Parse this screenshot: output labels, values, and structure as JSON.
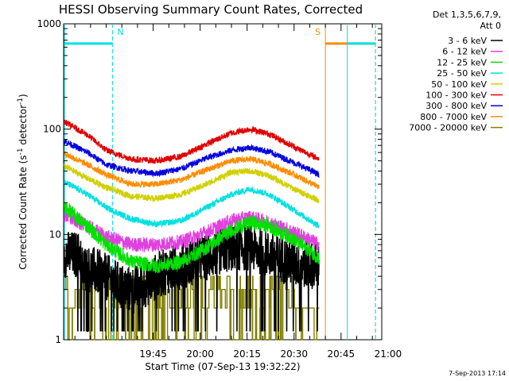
{
  "chart_data": {
    "type": "line",
    "title": "HESSI Observing Summary Count Rates, Corrected",
    "xlabel": "Start Time (07-Sep-13 19:32:22)",
    "ylabel_main": "Corrected Count Rate (s",
    "ylabel_sup1": "-1",
    "ylabel_mid": " detector",
    "ylabel_sup2": "-1",
    "ylabel_end": ")",
    "y_scale": "log",
    "ylim": [
      1,
      1000
    ],
    "y_ticks": [
      "1",
      "10",
      "100",
      "1000"
    ],
    "x_range_min": [
      -13.6,
      88.0
    ],
    "x_ticks_min": [
      15,
      30,
      45,
      60,
      75,
      90
    ],
    "x_tick_labels": [
      "19:45",
      "20:00",
      "20:15",
      "20:30",
      "20:45",
      "21:00"
    ],
    "detector_note": "Det 1,3,5,6,7,9,",
    "attenuator_note": "Att 0",
    "timestamp": "7-Sep-2013 17:14",
    "legend_position": "right, outside plot",
    "grid": false,
    "series": [
      {
        "name": "3 - 6 keV",
        "color": "#000000",
        "style": "noisy_low"
      },
      {
        "name": "6 - 12 keV",
        "color": "#e040e0",
        "base": [
          15,
          12,
          9.5,
          8,
          8,
          8.5,
          10.5,
          13.5,
          14.5,
          13,
          10.5,
          8
        ]
      },
      {
        "name": "12 - 25 keV",
        "color": "#00e000",
        "base": [
          18,
          12,
          8,
          5.5,
          5,
          5.5,
          7.5,
          11,
          13,
          12,
          9,
          6
        ]
      },
      {
        "name": "25 - 50 keV",
        "color": "#00e0e0",
        "base": [
          31,
          24,
          18,
          14,
          12.5,
          13.5,
          18,
          24,
          27,
          24,
          17,
          12
        ]
      },
      {
        "name": "50 - 100 keV",
        "color": "#d0d000",
        "base": [
          44,
          34,
          28,
          23,
          22,
          24,
          30,
          39,
          40,
          36,
          27,
          21
        ]
      },
      {
        "name": "100 - 300 keV",
        "color": "#e00000",
        "base": [
          116,
          88,
          63,
          52,
          50,
          55,
          72,
          92,
          100,
          90,
          68,
          52
        ]
      },
      {
        "name": "300 - 800 keV",
        "color": "#0000e0",
        "base": [
          76,
          60,
          46,
          40,
          38,
          42,
          53,
          63,
          67,
          61,
          48,
          37
        ]
      },
      {
        "name": "800 - 7000 keV",
        "color": "#ff8c00",
        "base": [
          58,
          46,
          37,
          30,
          30,
          33,
          41,
          50,
          52,
          47,
          37,
          28
        ]
      },
      {
        "name": "7000 - 20000 keV",
        "color": "#808000",
        "style": "steps_low"
      }
    ],
    "base_times_min": [
      -13,
      -6,
      0,
      8,
      16,
      24,
      32,
      40,
      46,
      52,
      60,
      68
    ],
    "data_end_min": 68.0,
    "markers": [
      {
        "label": "N",
        "type": "night",
        "color": "#00e0e0",
        "start_min": -13.6,
        "end_min": 2.0
      },
      {
        "label": "S",
        "type": "saa",
        "color": "#ff8c00",
        "start_min": 70.0,
        "end_min": 86.0
      },
      {
        "label": "",
        "type": "night",
        "color": "#00e0e0",
        "start_min": 77.0,
        "end_min": 86.0
      }
    ],
    "marker_level": 650
  }
}
